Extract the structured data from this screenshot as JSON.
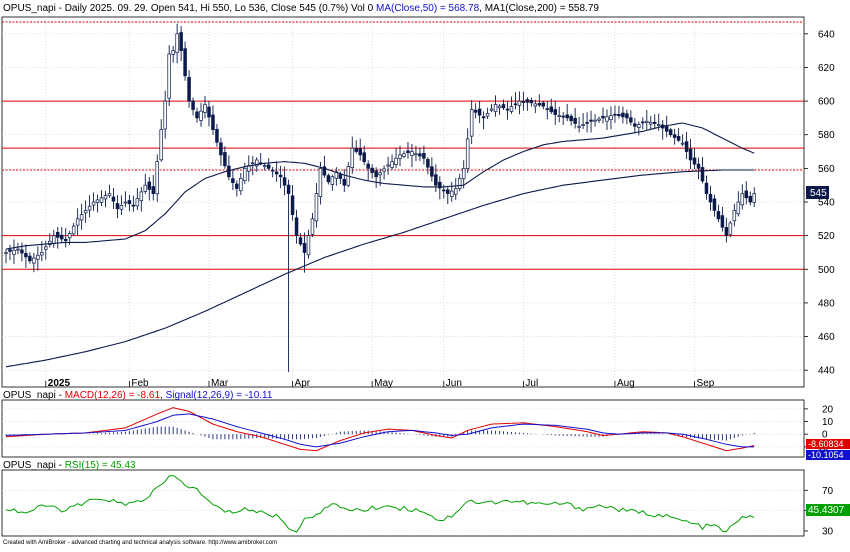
{
  "footer_credit": "Created with AmiBroker - advanced charting and technical analysis software. http://www.amibroker.com",
  "colors": {
    "candle": "#0b1a4a",
    "ma_line": "#0b1a4a",
    "hline": "#e00000",
    "macd": "#e00000",
    "signal": "#1010d0",
    "rsi": "#00a000",
    "grid": "#c8c8c8",
    "axis": "#000000"
  },
  "chart_data": [
    {
      "type": "candlestick",
      "title": "OPUS_napi - Daily 2025. 09. 29. Open 541, Hi 550, Lo 536, Close 545 (0.7%) Vol 0",
      "ma50_label": "MA(Close,50) = 568.78",
      "ma200_label": "MA1(Close,200) = 558.79",
      "ylim": [
        430,
        650
      ],
      "y_ticks": [
        440,
        460,
        480,
        500,
        520,
        540,
        560,
        580,
        600,
        620,
        640
      ],
      "last_close_label": "545",
      "months": [
        {
          "label": "2025",
          "bar": 10
        },
        {
          "label": "Feb",
          "bar": 31
        },
        {
          "label": "Mar",
          "bar": 51
        },
        {
          "label": "Apr",
          "bar": 72
        },
        {
          "label": "May",
          "bar": 92
        },
        {
          "label": "Jun",
          "bar": 110
        },
        {
          "label": "Jul",
          "bar": 130
        },
        {
          "label": "Aug",
          "bar": 153
        },
        {
          "label": "Sep",
          "bar": 173
        }
      ],
      "horizontal_lines": [
        {
          "value": 647,
          "style": "dotted"
        },
        {
          "value": 600,
          "style": "solid"
        },
        {
          "value": 572,
          "style": "solid"
        },
        {
          "value": 559,
          "style": "dotted"
        },
        {
          "value": 520,
          "style": "solid"
        },
        {
          "value": 500,
          "style": "solid"
        }
      ],
      "ma50_anchors": [
        [
          0,
          512
        ],
        [
          5,
          514
        ],
        [
          10,
          515
        ],
        [
          15,
          516
        ],
        [
          20,
          516
        ],
        [
          25,
          517
        ],
        [
          30,
          518
        ],
        [
          35,
          523
        ],
        [
          40,
          533
        ],
        [
          45,
          546
        ],
        [
          50,
          554
        ],
        [
          55,
          558
        ],
        [
          60,
          561
        ],
        [
          65,
          563
        ],
        [
          70,
          564
        ],
        [
          75,
          563
        ],
        [
          80,
          560
        ],
        [
          85,
          556
        ],
        [
          90,
          553
        ],
        [
          95,
          551
        ],
        [
          100,
          550
        ],
        [
          105,
          549
        ],
        [
          110,
          549
        ],
        [
          115,
          550
        ],
        [
          120,
          558
        ],
        [
          125,
          565
        ],
        [
          130,
          570
        ],
        [
          135,
          574
        ],
        [
          140,
          576
        ],
        [
          145,
          577
        ],
        [
          150,
          578
        ],
        [
          155,
          580
        ],
        [
          160,
          582
        ],
        [
          165,
          585
        ],
        [
          170,
          587
        ],
        [
          175,
          584
        ],
        [
          180,
          578
        ],
        [
          185,
          572
        ],
        [
          188,
          569
        ]
      ],
      "ma200_anchors": [
        [
          0,
          442
        ],
        [
          10,
          446
        ],
        [
          20,
          451
        ],
        [
          30,
          457
        ],
        [
          40,
          465
        ],
        [
          50,
          475
        ],
        [
          60,
          486
        ],
        [
          70,
          497
        ],
        [
          80,
          507
        ],
        [
          90,
          515
        ],
        [
          100,
          522
        ],
        [
          110,
          530
        ],
        [
          120,
          538
        ],
        [
          130,
          545
        ],
        [
          140,
          550
        ],
        [
          150,
          553
        ],
        [
          160,
          556
        ],
        [
          170,
          558
        ],
        [
          180,
          559
        ],
        [
          188,
          559
        ]
      ],
      "close_anchors": [
        [
          0,
          510
        ],
        [
          3,
          512
        ],
        [
          6,
          505
        ],
        [
          9,
          510
        ],
        [
          12,
          520
        ],
        [
          15,
          517
        ],
        [
          18,
          530
        ],
        [
          22,
          540
        ],
        [
          26,
          545
        ],
        [
          28,
          536
        ],
        [
          30,
          540
        ],
        [
          32,
          538
        ],
        [
          35,
          550
        ],
        [
          37,
          545
        ],
        [
          39,
          583
        ],
        [
          40,
          600
        ],
        [
          41,
          628
        ],
        [
          42,
          630
        ],
        [
          43,
          640
        ],
        [
          44,
          630
        ],
        [
          46,
          600
        ],
        [
          48,
          590
        ],
        [
          50,
          598
        ],
        [
          52,
          583
        ],
        [
          54,
          568
        ],
        [
          56,
          555
        ],
        [
          58,
          548
        ],
        [
          60,
          560
        ],
        [
          63,
          565
        ],
        [
          66,
          560
        ],
        [
          69,
          555
        ],
        [
          71,
          545
        ],
        [
          73,
          520
        ],
        [
          75,
          510
        ],
        [
          77,
          530
        ],
        [
          79,
          560
        ],
        [
          81,
          552
        ],
        [
          83,
          558
        ],
        [
          85,
          550
        ],
        [
          87,
          572
        ],
        [
          89,
          568
        ],
        [
          91,
          560
        ],
        [
          93,
          555
        ],
        [
          96,
          562
        ],
        [
          99,
          568
        ],
        [
          102,
          570
        ],
        [
          105,
          566
        ],
        [
          108,
          550
        ],
        [
          111,
          545
        ],
        [
          113,
          548
        ],
        [
          115,
          560
        ],
        [
          117,
          595
        ],
        [
          120,
          590
        ],
        [
          123,
          598
        ],
        [
          126,
          595
        ],
        [
          129,
          600
        ],
        [
          132,
          599
        ],
        [
          135,
          597
        ],
        [
          138,
          592
        ],
        [
          141,
          590
        ],
        [
          144,
          585
        ],
        [
          147,
          588
        ],
        [
          150,
          590
        ],
        [
          153,
          592
        ],
        [
          156,
          590
        ],
        [
          158,
          585
        ],
        [
          161,
          588
        ],
        [
          164,
          586
        ],
        [
          167,
          580
        ],
        [
          170,
          575
        ],
        [
          172,
          565
        ],
        [
          174,
          560
        ],
        [
          176,
          545
        ],
        [
          178,
          535
        ],
        [
          180,
          525
        ],
        [
          181,
          520
        ],
        [
          183,
          535
        ],
        [
          185,
          545
        ],
        [
          187,
          540
        ],
        [
          188,
          545
        ]
      ],
      "spikes": [
        {
          "bar": 71,
          "low": 439
        },
        {
          "bar": 75,
          "low": 498
        }
      ]
    },
    {
      "type": "line",
      "title": "OPUS_napi - MACD(12,26) = -8.61, Signal(12,26,9) = -10.11",
      "series_names": [
        "MACD(12,26) = -8.61",
        "Signal(12,26,9) = -10.11"
      ],
      "ylim": [
        -18,
        27
      ],
      "y_ticks": [
        -10,
        0,
        10,
        20
      ],
      "last_macd_label": "-8.60834",
      "last_signal_label": "-10.1054",
      "macd_anchors": [
        [
          0,
          -2
        ],
        [
          10,
          0
        ],
        [
          20,
          1
        ],
        [
          30,
          5
        ],
        [
          38,
          16
        ],
        [
          42,
          21
        ],
        [
          46,
          18
        ],
        [
          52,
          8
        ],
        [
          58,
          2
        ],
        [
          64,
          -2
        ],
        [
          70,
          -8
        ],
        [
          74,
          -12
        ],
        [
          78,
          -13
        ],
        [
          84,
          -5
        ],
        [
          90,
          1
        ],
        [
          96,
          4
        ],
        [
          102,
          3
        ],
        [
          108,
          -1
        ],
        [
          112,
          -3
        ],
        [
          116,
          3
        ],
        [
          122,
          8
        ],
        [
          130,
          9
        ],
        [
          138,
          6
        ],
        [
          146,
          2
        ],
        [
          150,
          -1
        ],
        [
          154,
          0
        ],
        [
          160,
          2
        ],
        [
          166,
          1
        ],
        [
          170,
          -2
        ],
        [
          176,
          -8
        ],
        [
          181,
          -13
        ],
        [
          185,
          -11
        ],
        [
          188,
          -9
        ]
      ],
      "signal_anchors": [
        [
          0,
          -1
        ],
        [
          10,
          0
        ],
        [
          20,
          1
        ],
        [
          30,
          3
        ],
        [
          38,
          10
        ],
        [
          42,
          15
        ],
        [
          46,
          16
        ],
        [
          52,
          12
        ],
        [
          58,
          6
        ],
        [
          64,
          1
        ],
        [
          70,
          -4
        ],
        [
          74,
          -8
        ],
        [
          78,
          -10
        ],
        [
          84,
          -7
        ],
        [
          90,
          -2
        ],
        [
          96,
          2
        ],
        [
          102,
          3
        ],
        [
          108,
          1
        ],
        [
          112,
          -1
        ],
        [
          116,
          0
        ],
        [
          122,
          5
        ],
        [
          130,
          8
        ],
        [
          138,
          7
        ],
        [
          146,
          4
        ],
        [
          150,
          1
        ],
        [
          154,
          0
        ],
        [
          160,
          1
        ],
        [
          166,
          1
        ],
        [
          170,
          0
        ],
        [
          176,
          -4
        ],
        [
          181,
          -8
        ],
        [
          185,
          -10
        ],
        [
          188,
          -10
        ]
      ]
    },
    {
      "type": "line",
      "title": "OPUS_napi - RSI(15) = 45.43",
      "series_names": [
        "RSI(15) = 45.43"
      ],
      "ylim": [
        25,
        90
      ],
      "y_ticks": [
        30,
        50,
        70
      ],
      "last_value_label": "45.4307",
      "rsi_anchors": [
        [
          0,
          52
        ],
        [
          5,
          48
        ],
        [
          10,
          55
        ],
        [
          15,
          50
        ],
        [
          20,
          58
        ],
        [
          25,
          62
        ],
        [
          30,
          55
        ],
        [
          35,
          62
        ],
        [
          39,
          75
        ],
        [
          42,
          85
        ],
        [
          44,
          78
        ],
        [
          48,
          70
        ],
        [
          52,
          55
        ],
        [
          56,
          48
        ],
        [
          60,
          52
        ],
        [
          64,
          48
        ],
        [
          68,
          45
        ],
        [
          71,
          34
        ],
        [
          73,
          30
        ],
        [
          75,
          40
        ],
        [
          78,
          48
        ],
        [
          82,
          55
        ],
        [
          86,
          52
        ],
        [
          90,
          50
        ],
        [
          95,
          55
        ],
        [
          100,
          52
        ],
        [
          105,
          50
        ],
        [
          109,
          40
        ],
        [
          112,
          45
        ],
        [
          116,
          60
        ],
        [
          120,
          57
        ],
        [
          125,
          60
        ],
        [
          130,
          58
        ],
        [
          135,
          56
        ],
        [
          140,
          57
        ],
        [
          145,
          52
        ],
        [
          150,
          55
        ],
        [
          155,
          50
        ],
        [
          160,
          48
        ],
        [
          165,
          45
        ],
        [
          170,
          40
        ],
        [
          175,
          34
        ],
        [
          178,
          35
        ],
        [
          181,
          29
        ],
        [
          184,
          40
        ],
        [
          186,
          45
        ],
        [
          188,
          45
        ]
      ]
    }
  ]
}
